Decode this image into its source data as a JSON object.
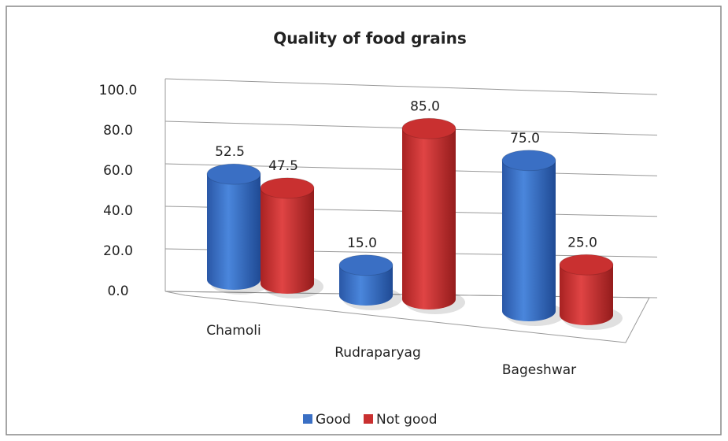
{
  "chart_data": {
    "type": "bar3d",
    "title": "Quality of food grains",
    "categories": [
      "Chamoli",
      "Rudraparyag",
      "Bageshwar"
    ],
    "series": [
      {
        "name": "Good",
        "color": "#3a6fc4",
        "values": [
          52.5,
          15,
          75
        ],
        "value_labels": [
          "52.5",
          "15.0",
          "75.0"
        ]
      },
      {
        "name": "Not good",
        "color": "#c93030",
        "values": [
          47.5,
          85,
          25
        ],
        "value_labels": [
          "47.5",
          "85.0",
          "25.0"
        ]
      }
    ],
    "ylim": [
      0,
      100
    ],
    "yticks": [
      {
        "value": 0,
        "label": "0.0"
      },
      {
        "value": 20,
        "label": "20.0"
      },
      {
        "value": 40,
        "label": "40.0"
      },
      {
        "value": 60,
        "label": "60.0"
      },
      {
        "value": 80,
        "label": "80.0"
      },
      {
        "value": 100,
        "label": "100.0"
      }
    ],
    "grid": true,
    "legend": "bottom"
  }
}
